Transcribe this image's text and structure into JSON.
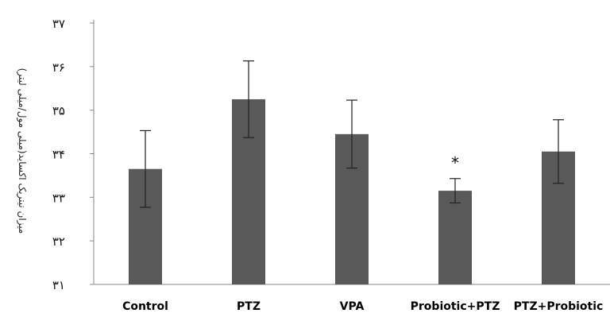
{
  "chart_data": {
    "type": "bar",
    "title": "",
    "xlabel": "",
    "ylabel": "میزان نیتریک اکساید(میلی مول/میلی لیتر)",
    "ylim": [
      31,
      37
    ],
    "y_ticks": [
      "۳۱",
      "۳۲",
      "۳۳",
      "۳۴",
      "۳۵",
      "۳۶",
      "۳۷"
    ],
    "y_tick_values": [
      31,
      32,
      33,
      34,
      35,
      36,
      37
    ],
    "categories": [
      "Control",
      "PTZ",
      "VPA",
      "Probiotic+PTZ",
      "PTZ+Probiotic"
    ],
    "values": [
      33.65,
      35.25,
      34.45,
      33.15,
      34.05
    ],
    "error": [
      0.88,
      0.88,
      0.78,
      0.28,
      0.73
    ],
    "annotations": [
      "",
      "",
      "",
      "*",
      ""
    ],
    "bar_color": "#595959",
    "grid": false
  }
}
